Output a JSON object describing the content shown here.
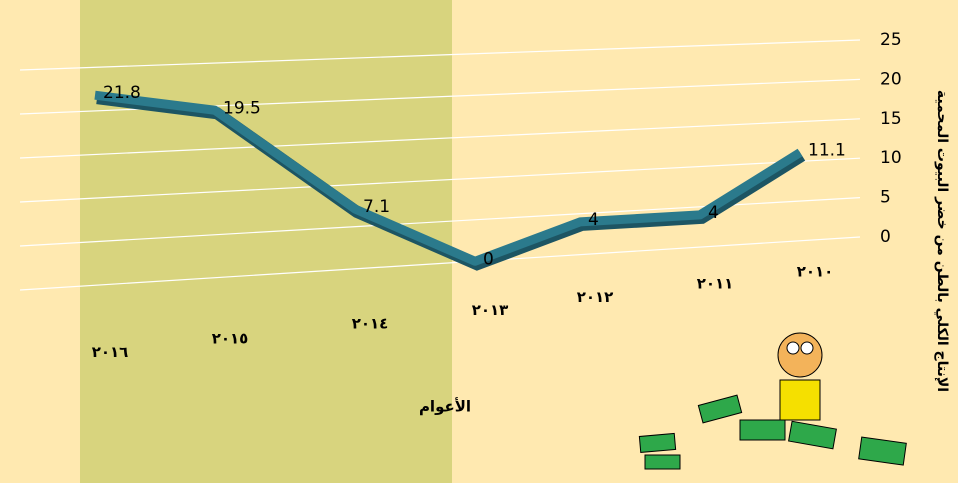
{
  "chart_data": {
    "type": "line",
    "categories": [
      "٢٠١٦",
      "٢٠١٥",
      "٢٠١٤",
      "٢٠١٣",
      "٢٠١٢",
      "٢٠١١",
      "٢٠١٠"
    ],
    "values": [
      21.8,
      19.5,
      7.1,
      0,
      4,
      4,
      11.1
    ],
    "color": "#2b7a8c",
    "x_label": "الأعوام",
    "y_label": "الإنتاج الكلي بالطن من خضر البيوت المحمية",
    "ylim": [
      0,
      25
    ],
    "yticks": [
      0,
      5,
      10,
      15,
      20,
      25
    ],
    "grid": true
  }
}
